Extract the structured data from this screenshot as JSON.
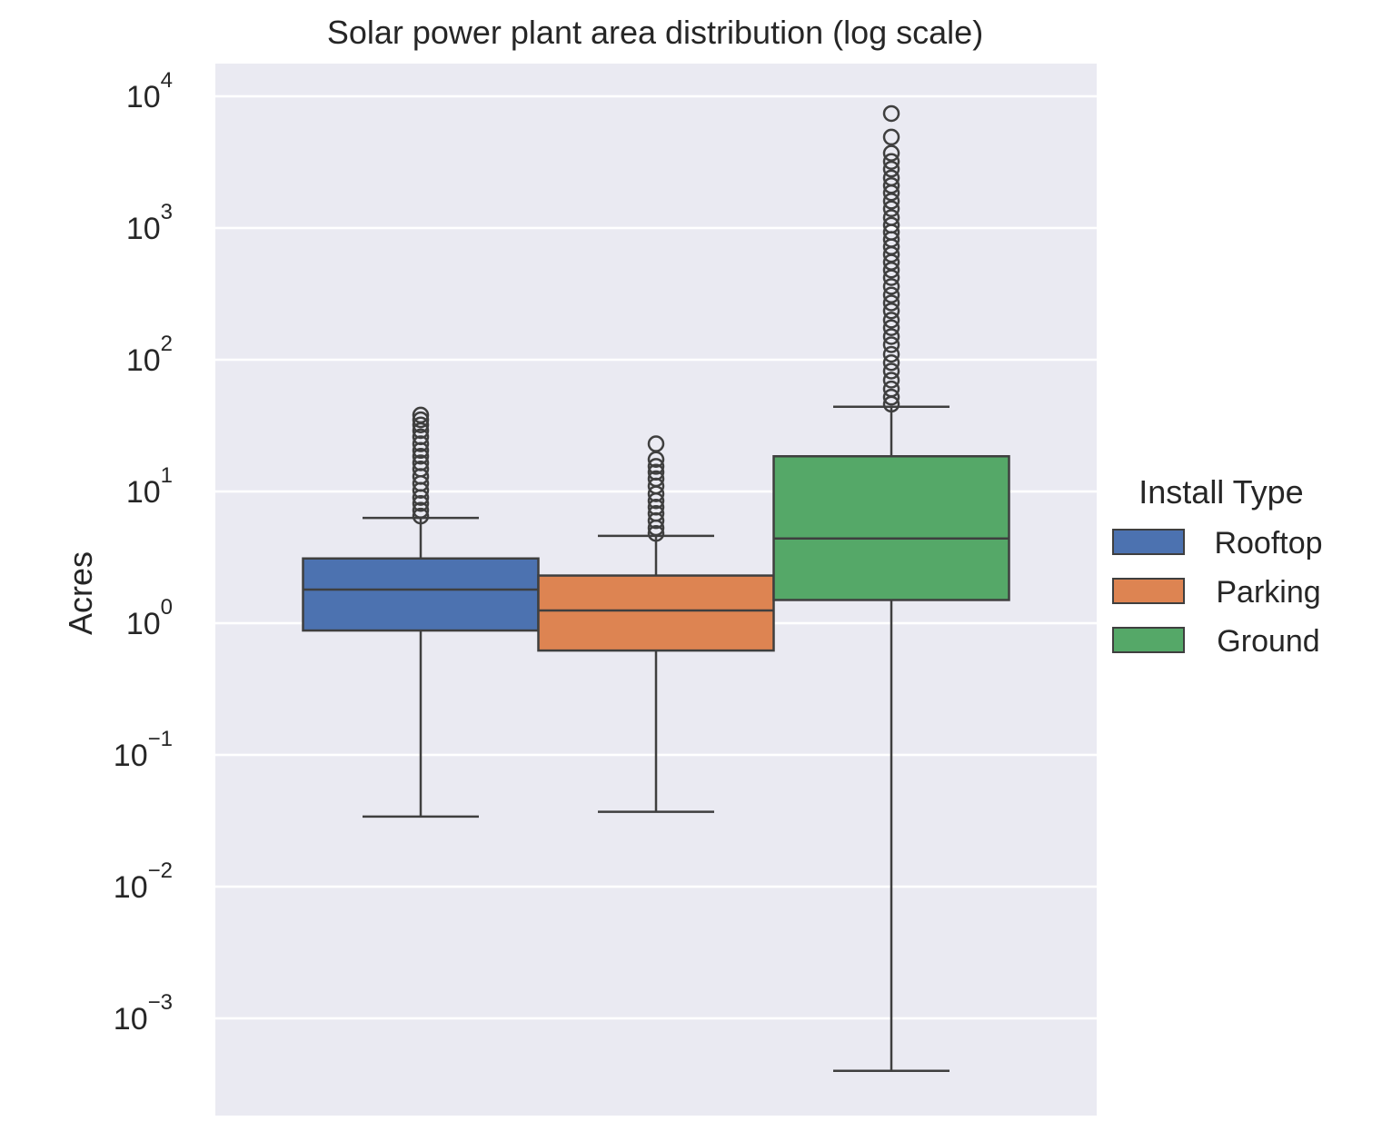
{
  "chart_data": {
    "type": "box",
    "title": "Solar power plant area distribution (log scale)",
    "xlabel": "",
    "ylabel": "Acres",
    "yscale": "log",
    "ylim": [
      0.0002,
      13000
    ],
    "yticks": [
      {
        "value": 0.001,
        "base": "10",
        "exp": "−3"
      },
      {
        "value": 0.01,
        "base": "10",
        "exp": "−2"
      },
      {
        "value": 0.1,
        "base": "10",
        "exp": "−1"
      },
      {
        "value": 1,
        "base": "10",
        "exp": "0"
      },
      {
        "value": 10,
        "base": "10",
        "exp": "1"
      },
      {
        "value": 100,
        "base": "10",
        "exp": "2"
      },
      {
        "value": 1000,
        "base": "10",
        "exp": "3"
      },
      {
        "value": 10000,
        "base": "10",
        "exp": "4"
      }
    ],
    "grid": true,
    "background": "#eaeaf2",
    "legend": {
      "title": "Install Type",
      "placement": "right"
    },
    "series": [
      {
        "name": "Rooftop",
        "color": "#4c72b0",
        "whisker_low": 0.034,
        "q1": 0.88,
        "median": 1.8,
        "q3": 3.1,
        "whisker_high": 6.3,
        "outliers": [
          6.5,
          7.2,
          8.1,
          9.0,
          10.2,
          11.5,
          13.0,
          14.8,
          16.5,
          18.5,
          20.5,
          23.0,
          26.0,
          29.0,
          32.0,
          35.0,
          38.0
        ]
      },
      {
        "name": "Parking",
        "color": "#dd8452",
        "whisker_low": 0.037,
        "q1": 0.62,
        "median": 1.25,
        "q3": 2.3,
        "whisker_high": 4.6,
        "outliers": [
          4.8,
          5.3,
          6.0,
          6.8,
          7.6,
          8.5,
          9.6,
          11.0,
          12.5,
          14.0,
          15.5,
          17.5,
          23.0
        ]
      },
      {
        "name": "Ground",
        "color": "#55a868",
        "whisker_low": 0.0004,
        "q1": 1.5,
        "median": 4.4,
        "q3": 18.5,
        "whisker_high": 44,
        "outliers": [
          46,
          52,
          60,
          70,
          82,
          95,
          110,
          130,
          150,
          175,
          200,
          235,
          270,
          310,
          360,
          420,
          480,
          550,
          630,
          720,
          820,
          930,
          1050,
          1200,
          1400,
          1600,
          1850,
          2100,
          2400,
          2800,
          3200,
          3700,
          4900,
          7400
        ]
      }
    ]
  }
}
